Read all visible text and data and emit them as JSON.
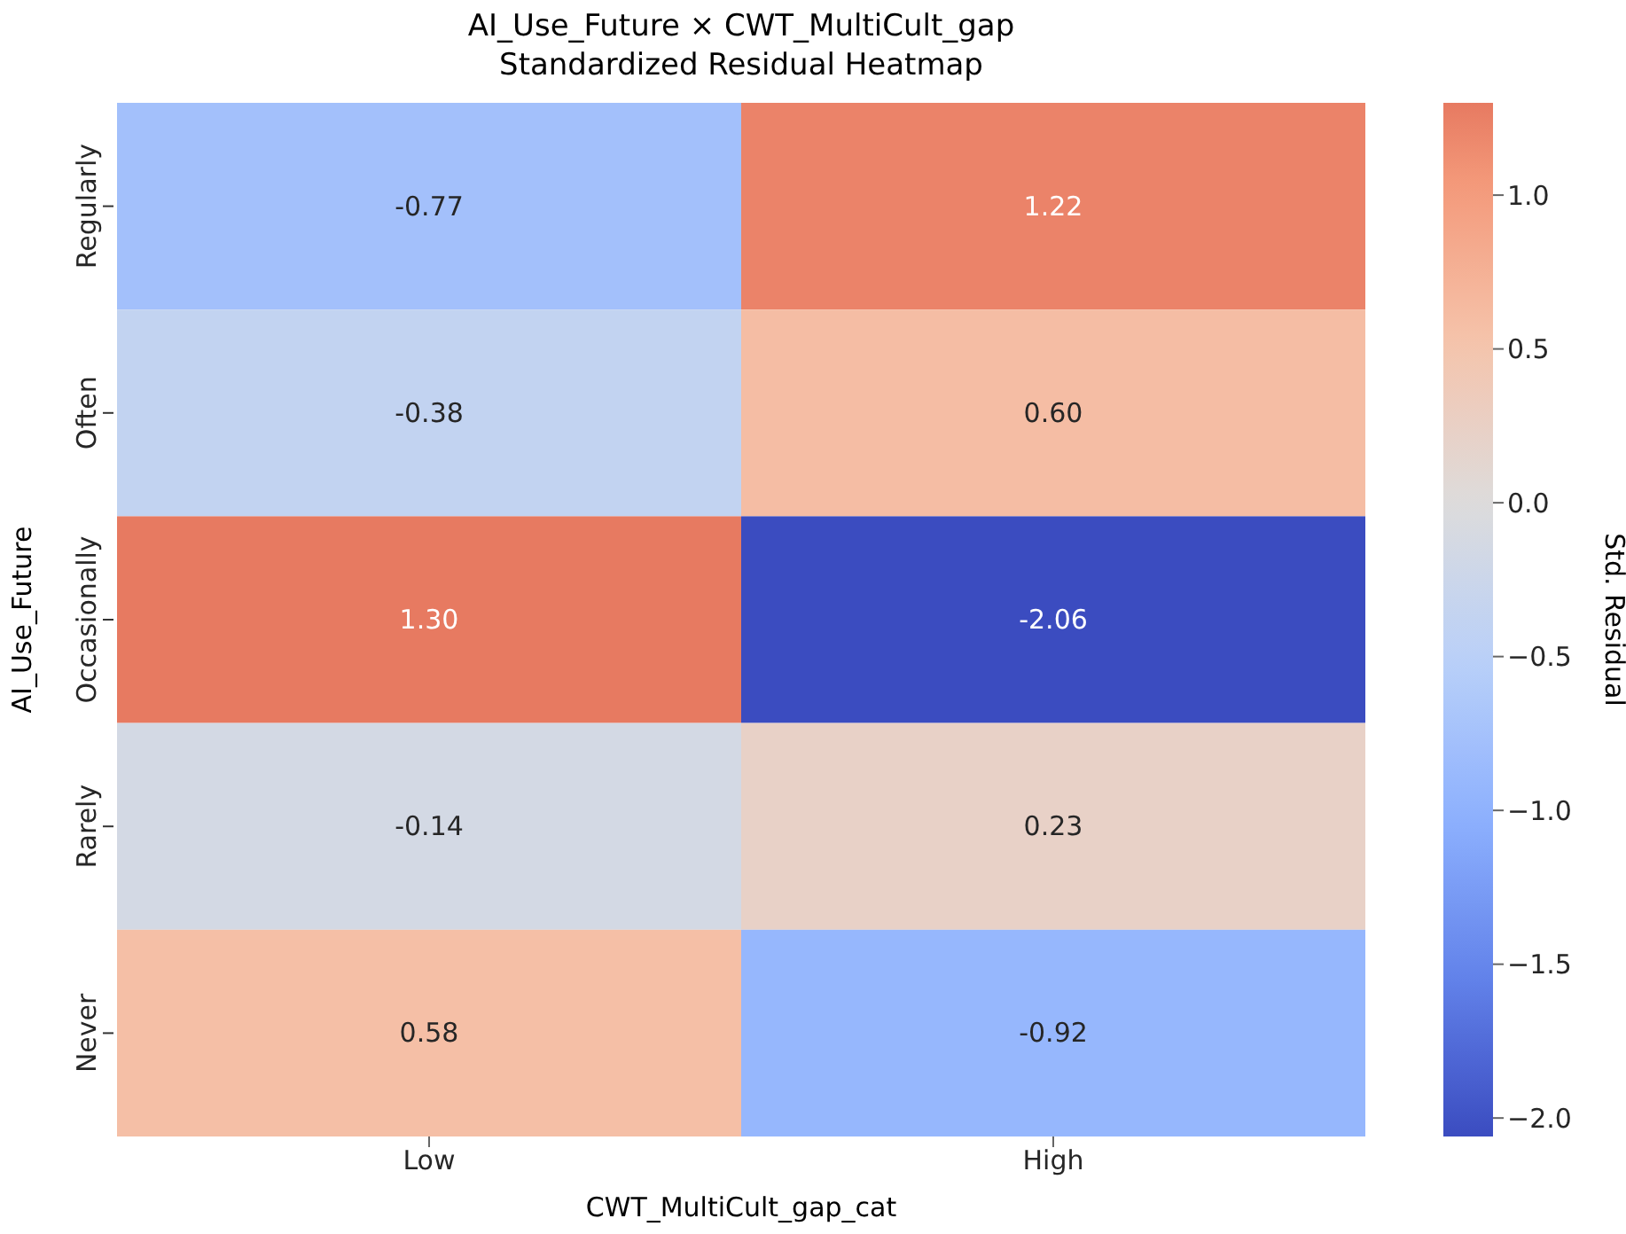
{
  "chart_data": {
    "type": "heatmap",
    "title": "AI_Use_Future × CWT_MultiCult_gap\nStandardized Residual Heatmap",
    "xlabel": "CWT_MultiCult_gap_cat",
    "ylabel": "AI_Use_Future",
    "clabel": "Std. Residual",
    "categories": [
      "Low",
      "High"
    ],
    "y_categories": [
      "Regularly",
      "Often",
      "Occasionally",
      "Rarely",
      "Never"
    ],
    "cells": [
      [
        -0.77,
        1.22
      ],
      [
        -0.38,
        0.6
      ],
      [
        1.3,
        -2.06
      ],
      [
        -0.14,
        0.23
      ],
      [
        0.58,
        -0.92
      ]
    ],
    "cell_labels": [
      [
        "-0.77",
        "1.22"
      ],
      [
        "-0.38",
        "0.60"
      ],
      [
        "1.30",
        "-2.06"
      ],
      [
        "-0.14",
        "0.23"
      ],
      [
        "0.58",
        "-0.92"
      ]
    ],
    "clim": [
      -2.06,
      1.3
    ],
    "cticks": [
      {
        "value": -2,
        "label": "−2.0"
      },
      {
        "value": -1.5,
        "label": "−1.5"
      },
      {
        "value": -1,
        "label": "−1.0"
      },
      {
        "value": -0.5,
        "label": "−0.5"
      },
      {
        "value": 0,
        "label": "0.0"
      },
      {
        "value": 0.5,
        "label": "0.5"
      },
      {
        "value": 1,
        "label": "1.0"
      }
    ]
  }
}
